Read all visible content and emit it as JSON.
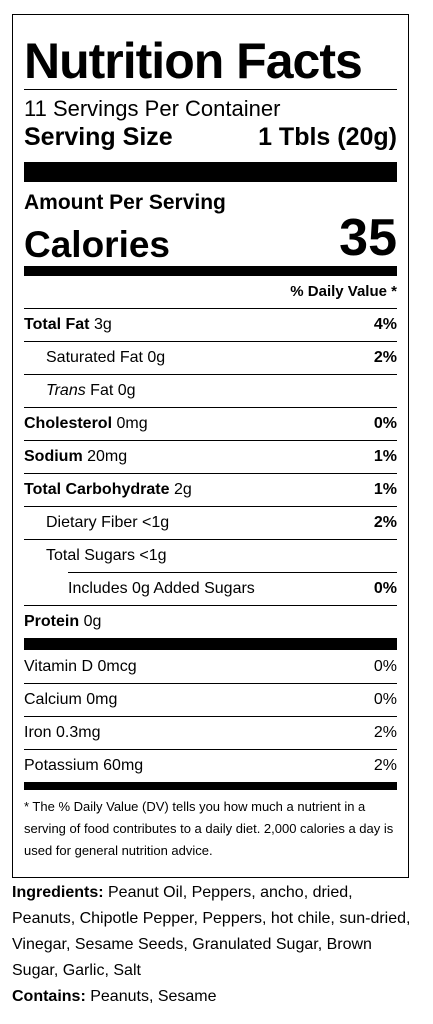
{
  "label": {
    "title": "Nutrition Facts",
    "servings_per_container": "11 Servings Per Container",
    "serving_size_label": "Serving Size",
    "serving_size_value": "1 Tbls (20g)",
    "amount_per_serving": "Amount Per Serving",
    "calories_label": "Calories",
    "calories_value": "35",
    "daily_value_header": "% Daily Value *",
    "nutrients": [
      {
        "name": "Total Fat",
        "amount": "3g",
        "dv": "4%"
      },
      {
        "name": "Saturated Fat",
        "amount": "0g",
        "dv": "2%"
      },
      {
        "name_italic": "Trans",
        "name": "Fat",
        "amount": "0g",
        "dv": ""
      },
      {
        "name": "Cholesterol",
        "amount": "0mg",
        "dv": "0%"
      },
      {
        "name": "Sodium",
        "amount": "20mg",
        "dv": "1%"
      },
      {
        "name": "Total Carbohydrate",
        "amount": "2g",
        "dv": "1%"
      },
      {
        "name": "Dietary Fiber",
        "amount": "<1g",
        "dv": "2%"
      },
      {
        "name": "Total Sugars",
        "amount": "<1g",
        "dv": ""
      },
      {
        "name": "Includes 0g Added Sugars",
        "amount": "",
        "dv": "0%"
      },
      {
        "name": "Protein",
        "amount": "0g",
        "dv": ""
      }
    ],
    "vitamins": [
      {
        "text": "Vitamin D 0mcg",
        "dv": "0%"
      },
      {
        "text": "Calcium 0mg",
        "dv": "0%"
      },
      {
        "text": "Iron 0.3mg",
        "dv": "2%"
      },
      {
        "text": "Potassium 60mg",
        "dv": "2%"
      }
    ],
    "footnote": "* The % Daily Value (DV) tells you how much a nutrient in a serving of food contributes to a daily diet. 2,000 calories a day is used for general nutrition advice."
  },
  "ingredients": {
    "label": "Ingredients:",
    "text": " Peanut Oil, Peppers, ancho, dried, Peanuts, Chipotle Pepper, Peppers, hot chile, sun-dried, Vinegar, Sesame Seeds, Granulated Sugar, Brown Sugar, Garlic, Salt"
  },
  "contains": {
    "label": "Contains:",
    "text": " Peanuts, Sesame"
  }
}
